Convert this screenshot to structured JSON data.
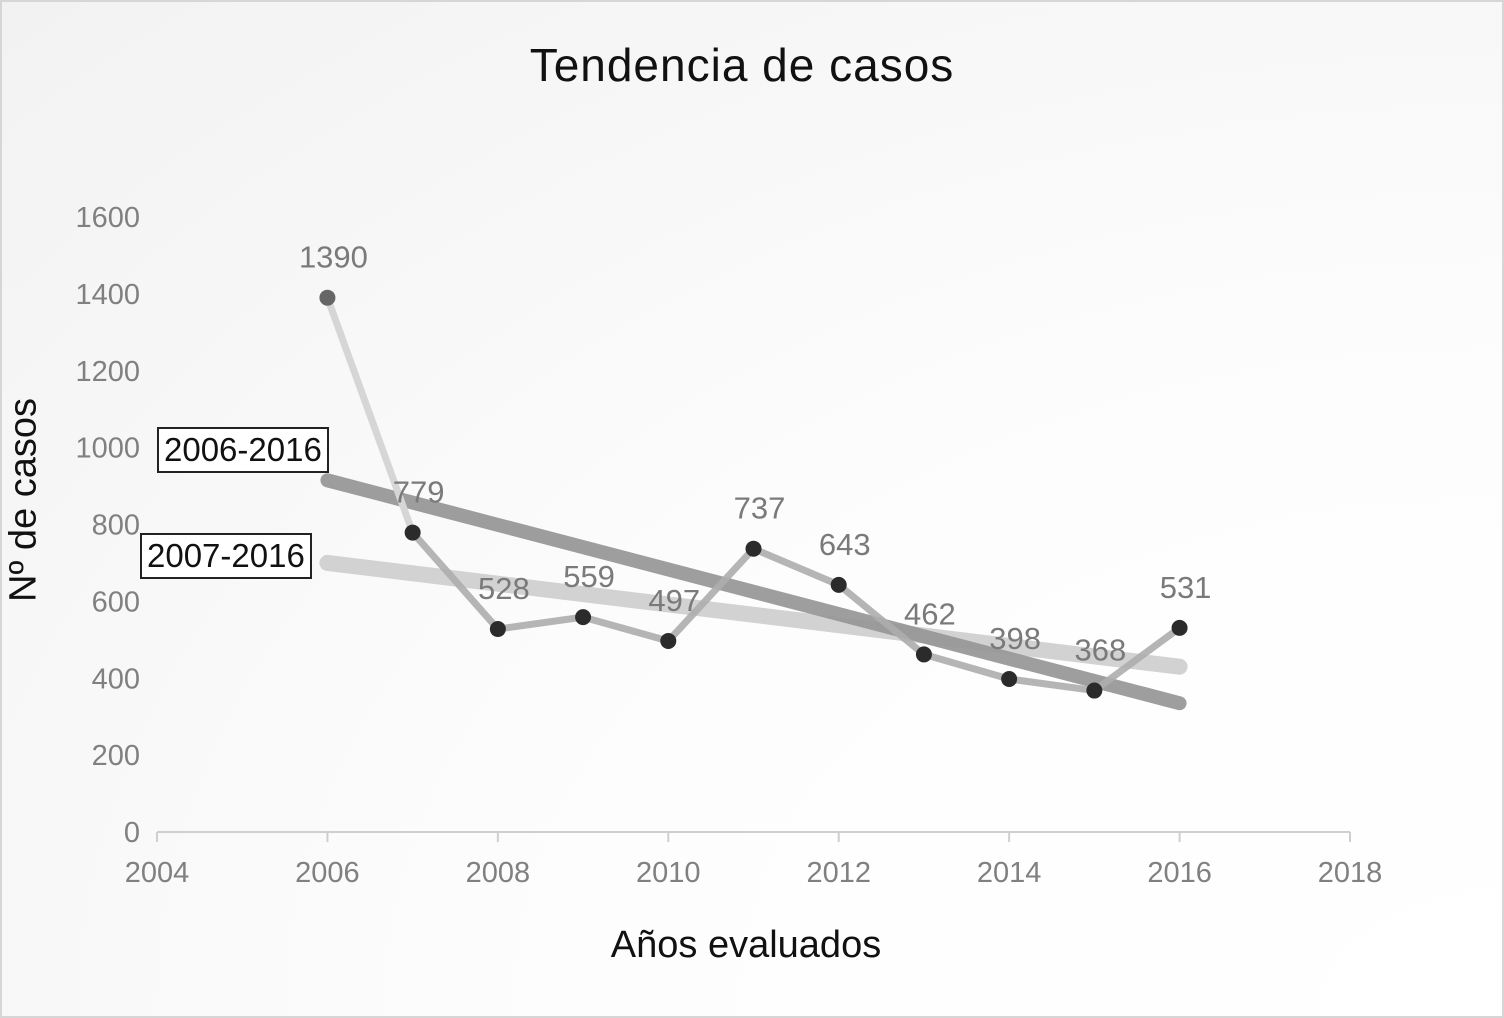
{
  "chart_data": {
    "type": "line",
    "title": "Tendencia de casos",
    "xlabel": "Años evaluados",
    "ylabel": "Nº de casos",
    "xlim": [
      2004,
      2018
    ],
    "ylim": [
      0,
      1600
    ],
    "xticks": [
      "2004",
      "2006",
      "2008",
      "2010",
      "2012",
      "2014",
      "2016",
      "2018"
    ],
    "yticks": [
      "0",
      "200",
      "400",
      "600",
      "800",
      "1000",
      "1200",
      "1400",
      "1600"
    ],
    "grid": false,
    "legend": "none",
    "x": [
      2006,
      2007,
      2008,
      2009,
      2010,
      2011,
      2012,
      2013,
      2014,
      2015,
      2016
    ],
    "series": [
      {
        "values": [
          1390,
          779,
          528,
          559,
          497,
          737,
          643,
          462,
          398,
          368,
          531
        ],
        "data_labels": [
          "1390",
          "779",
          "528",
          "559",
          "497",
          "737",
          "643",
          "462",
          "398",
          "368",
          "531"
        ]
      }
    ],
    "trendlines": [
      {
        "label": "2006-2016",
        "x": [
          2006,
          2016
        ],
        "y": [
          915,
          335
        ],
        "color": "#999999"
      },
      {
        "label": "2007-2016",
        "x": [
          2006,
          2016
        ],
        "y": [
          700,
          430
        ],
        "color": "#d0d0d0"
      }
    ],
    "colors": {
      "first_segment": "#d6d6d6",
      "series_line": "#adadad",
      "marker": "#2b2b2b",
      "first_marker": "#666666"
    }
  }
}
